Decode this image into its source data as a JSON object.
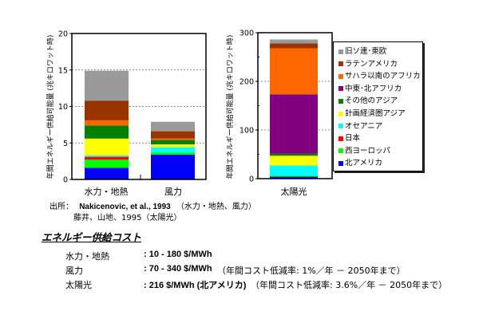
{
  "chart_data": [
    {
      "type": "bar",
      "stacked": true,
      "categories": [
        "水力・地熱",
        "風力"
      ],
      "ylabel": "年間エネルギー供給可能量 (兆キロワット時)",
      "ylim": [
        0,
        20
      ],
      "yticks": [
        "0",
        "5",
        "10",
        "15",
        "20"
      ],
      "grid": true,
      "series": [
        {
          "name": "北アメリカ",
          "color": "#0000FF",
          "values": [
            1.6,
            3.4
          ]
        },
        {
          "name": "西ヨーロッパ",
          "color": "#00FF00",
          "values": [
            1.1,
            0.3
          ]
        },
        {
          "name": "日本",
          "color": "#FF0000",
          "values": [
            0.4,
            0.0
          ]
        },
        {
          "name": "オセアニア",
          "color": "#00FFFF",
          "values": [
            0.2,
            0.7
          ]
        },
        {
          "name": "計画経済圏アジア",
          "color": "#FFFF00",
          "values": [
            2.3,
            0.4
          ]
        },
        {
          "name": "その他のアジア",
          "color": "#008000",
          "values": [
            1.8,
            0.6
          ]
        },
        {
          "name": "中東・北アフリカ",
          "color": "#800080",
          "values": [
            0.0,
            0.0
          ]
        },
        {
          "name": "サハラ以南のアフリカ",
          "color": "#FF6600",
          "values": [
            0.7,
            0.2
          ]
        },
        {
          "name": "ラテンアメリカ",
          "color": "#993300",
          "values": [
            2.7,
            1.0
          ]
        },
        {
          "name": "旧ソ連・東欧",
          "color": "#999999",
          "values": [
            4.1,
            1.3
          ]
        }
      ]
    },
    {
      "type": "bar",
      "stacked": true,
      "categories": [
        "太陽光"
      ],
      "ylabel": "年間エネルギー供給可能量 (兆キロワット時)",
      "ylim": [
        0,
        300
      ],
      "yticks": [
        "0",
        "100",
        "200",
        "300"
      ],
      "grid": true,
      "legend": "right",
      "series": [
        {
          "name": "北アメリカ",
          "color": "#0000FF",
          "values": [
            4
          ]
        },
        {
          "name": "西ヨーロッパ",
          "color": "#00FF00",
          "values": [
            2
          ]
        },
        {
          "name": "日本",
          "color": "#FF0000",
          "values": [
            0
          ]
        },
        {
          "name": "オセアニア",
          "color": "#00FFFF",
          "values": [
            21
          ]
        },
        {
          "name": "計画経済圏アジア",
          "color": "#FFFF00",
          "values": [
            20
          ]
        },
        {
          "name": "その他のアジア",
          "color": "#008000",
          "values": [
            4
          ]
        },
        {
          "name": "中東・北アフリカ",
          "color": "#800080",
          "values": [
            122
          ]
        },
        {
          "name": "サハラ以南のアフリカ",
          "color": "#FF6600",
          "values": [
            95
          ]
        },
        {
          "name": "ラテンアメリカ",
          "color": "#993300",
          "values": [
            10
          ]
        },
        {
          "name": "旧ソ連・東欧",
          "color": "#999999",
          "values": [
            8
          ]
        }
      ]
    }
  ],
  "legend": {
    "items": [
      {
        "label": "旧ソ連･東欧",
        "color": "#999999"
      },
      {
        "label": "ラテンアメリカ",
        "color": "#993300"
      },
      {
        "label": "サハラ以南のアフリカ",
        "color": "#FF6600"
      },
      {
        "label": "中東･北アフリカ",
        "color": "#800080"
      },
      {
        "label": "その他のアジア",
        "color": "#008000"
      },
      {
        "label": "計画経済圏アジア",
        "color": "#FFFF00"
      },
      {
        "label": "オセアニア",
        "color": "#00FFFF"
      },
      {
        "label": "日本",
        "color": "#FF0000"
      },
      {
        "label": "西ヨーロッパ",
        "color": "#00FF00"
      },
      {
        "label": "北アメリカ",
        "color": "#0000FF"
      }
    ]
  },
  "source": {
    "label": "出所：",
    "line1_ref": "Nakicenovic, et al., 1993",
    "line1_note": "（水力・地熱、風力）",
    "line2": "藤井、山地、1995（太陽光）"
  },
  "costs": {
    "title": "エネルギー供給コスト",
    "rows": [
      {
        "label": "水力・地熱",
        "value": ": 10 - 180 $/MWh",
        "note": ""
      },
      {
        "label": "風力",
        "value": ": 70 - 340 $/MWh",
        "note": "（年間コスト低減率: 1%／年 － 2050年まで）"
      },
      {
        "label": "太陽光",
        "value": ": 216 $/MWh (北アメリカ)",
        "note": "（年間コスト低減率: 3.6%／年 － 2050年まで）"
      }
    ]
  }
}
